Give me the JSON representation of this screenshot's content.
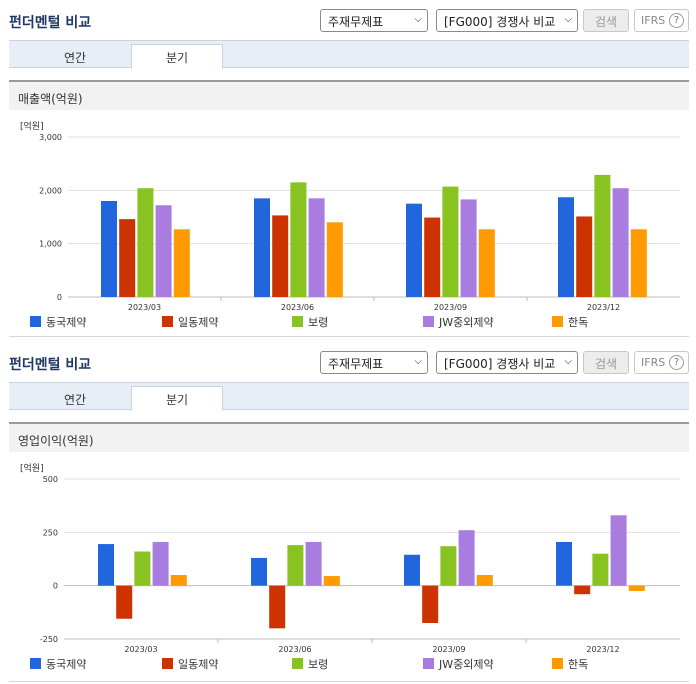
{
  "panels": [
    {
      "header": {
        "title": "펀더멘털 비교",
        "select_report": "주재무제표",
        "select_compare": "[FG000] 경쟁사 비교",
        "search_label": "검색",
        "ifrs_label": "IFRS",
        "help_glyph": "?"
      },
      "tabs": [
        {
          "label": "연간",
          "active": false
        },
        {
          "label": "분기",
          "active": true
        }
      ],
      "section_title": "매출액(억원)",
      "unit": "[억원]"
    },
    {
      "header": {
        "title": "펀더멘털 비교",
        "select_report": "주재무제표",
        "select_compare": "[FG000] 경쟁사 비교",
        "search_label": "검색",
        "ifrs_label": "IFRS",
        "help_glyph": "?"
      },
      "tabs": [
        {
          "label": "연간",
          "active": false
        },
        {
          "label": "분기",
          "active": true
        }
      ],
      "section_title": "영업이익(억원)",
      "unit": "[억원]"
    }
  ],
  "colors": [
    "#2266dd",
    "#cc3300",
    "#88c322",
    "#a97de0",
    "#ff9a00"
  ],
  "chart_data": [
    {
      "type": "bar",
      "ylabel": "[억원]",
      "categories": [
        "2023/03",
        "2023/06",
        "2023/09",
        "2023/12"
      ],
      "yticks": [
        0,
        1000,
        2000,
        3000
      ],
      "ytick_labels": [
        "0",
        "1,000",
        "2,000",
        "3,000"
      ],
      "ylim": [
        0,
        3000
      ],
      "grid": true,
      "legend_position": "bottom",
      "series": [
        {
          "name": "동국제약",
          "values": [
            1800,
            1850,
            1750,
            1870
          ]
        },
        {
          "name": "일동제약",
          "values": [
            1460,
            1530,
            1490,
            1510
          ]
        },
        {
          "name": "보령",
          "values": [
            2040,
            2150,
            2070,
            2290
          ]
        },
        {
          "name": "JW중외제약",
          "values": [
            1720,
            1850,
            1830,
            2040
          ]
        },
        {
          "name": "한독",
          "values": [
            1270,
            1400,
            1270,
            1270
          ]
        }
      ]
    },
    {
      "type": "bar",
      "ylabel": "[억원]",
      "categories": [
        "2023/03",
        "2023/06",
        "2023/09",
        "2023/12"
      ],
      "yticks": [
        -250,
        0,
        250,
        500
      ],
      "ytick_labels": [
        "-250",
        "0",
        "250",
        "500"
      ],
      "ylim": [
        -250,
        500
      ],
      "grid": true,
      "legend_position": "bottom",
      "series": [
        {
          "name": "동국제약",
          "values": [
            195,
            130,
            145,
            205
          ]
        },
        {
          "name": "일동제약",
          "values": [
            -155,
            -200,
            -175,
            -40
          ]
        },
        {
          "name": "보령",
          "values": [
            160,
            190,
            185,
            150
          ]
        },
        {
          "name": "JW중외제약",
          "values": [
            205,
            205,
            260,
            330
          ]
        },
        {
          "name": "한독",
          "values": [
            50,
            45,
            50,
            -25
          ]
        }
      ]
    }
  ]
}
